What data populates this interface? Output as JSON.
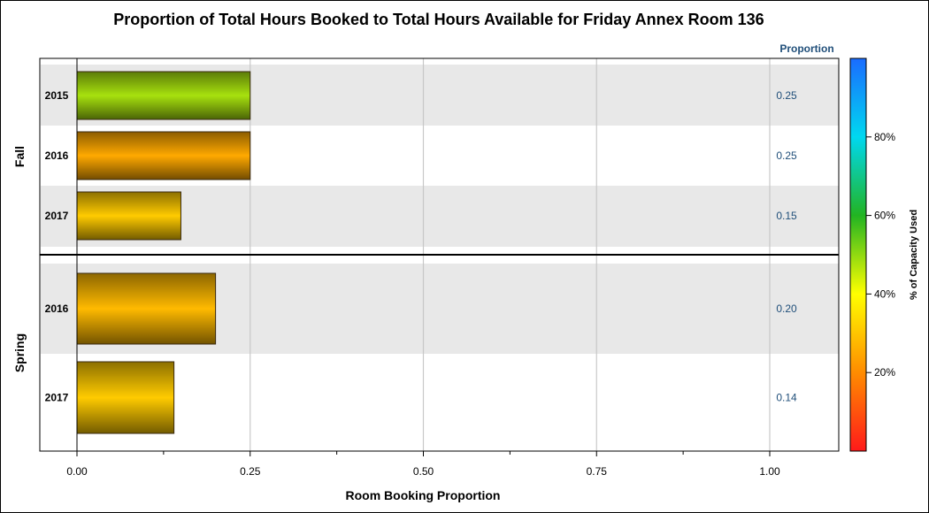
{
  "chart_data": {
    "type": "bar",
    "orientation": "horizontal",
    "title": "Proportion of Total Hours Booked to Total Hours Available for Friday Annex Room 136",
    "xlabel": "Room Booking Proportion",
    "xlim": [
      0,
      1.1
    ],
    "x_ticks": [
      "0.00",
      "0.25",
      "0.50",
      "0.75",
      "1.00"
    ],
    "value_column_header": "Proportion",
    "groups": [
      {
        "label": "Fall",
        "bars": [
          {
            "category": "2015",
            "value": 0.25,
            "value_label": "0.25",
            "capacity_pct": 48
          },
          {
            "category": "2016",
            "value": 0.25,
            "value_label": "0.25",
            "capacity_pct": 25
          },
          {
            "category": "2017",
            "value": 0.15,
            "value_label": "0.15",
            "capacity_pct": 31
          }
        ]
      },
      {
        "label": "Spring",
        "bars": [
          {
            "category": "2016",
            "value": 0.2,
            "value_label": "0.20",
            "capacity_pct": 28
          },
          {
            "category": "2017",
            "value": 0.14,
            "value_label": "0.14",
            "capacity_pct": 31
          }
        ]
      }
    ],
    "colorbar": {
      "title": "% of Capacity Used",
      "range": [
        0,
        100
      ],
      "ticks": [
        "20%",
        "40%",
        "60%",
        "80%"
      ],
      "colors": [
        "#ff1a1a",
        "#ff8c00",
        "#ffff00",
        "#22b422",
        "#00d8f0",
        "#1a6cff"
      ]
    },
    "grid": true,
    "band_colors": [
      "#e8e8e8",
      "#ffffff"
    ]
  }
}
